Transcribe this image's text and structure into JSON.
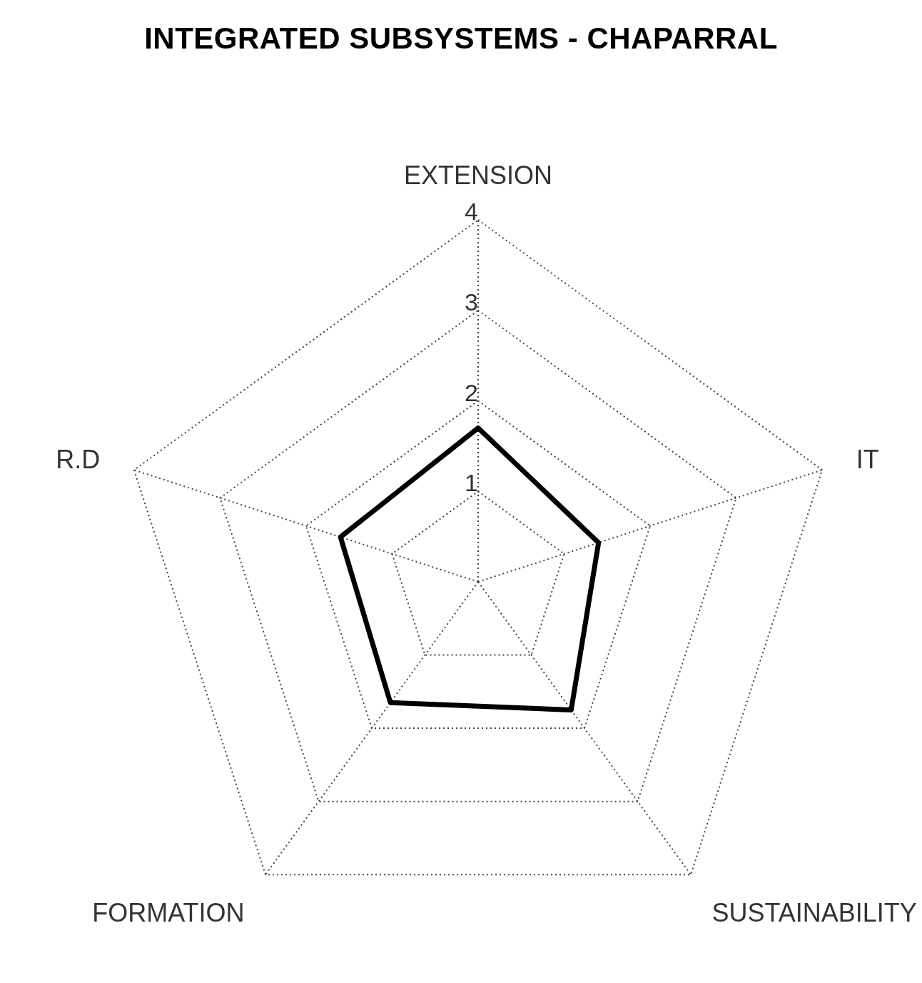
{
  "chart_data": {
    "type": "radar",
    "title": "INTEGRATED SUBSYSTEMS - CHAPARRAL",
    "categories": [
      "EXTENSION",
      "IT",
      "SUSTAINABILITY",
      "FORMATION",
      "R.D"
    ],
    "series": [
      {
        "color": "#000000",
        "values": [
          1.7,
          1.4,
          1.75,
          1.65,
          1.6
        ]
      }
    ],
    "ylim": [
      0,
      4
    ],
    "yticks": [
      1,
      2,
      3,
      4
    ],
    "grid": true,
    "legend": false
  }
}
